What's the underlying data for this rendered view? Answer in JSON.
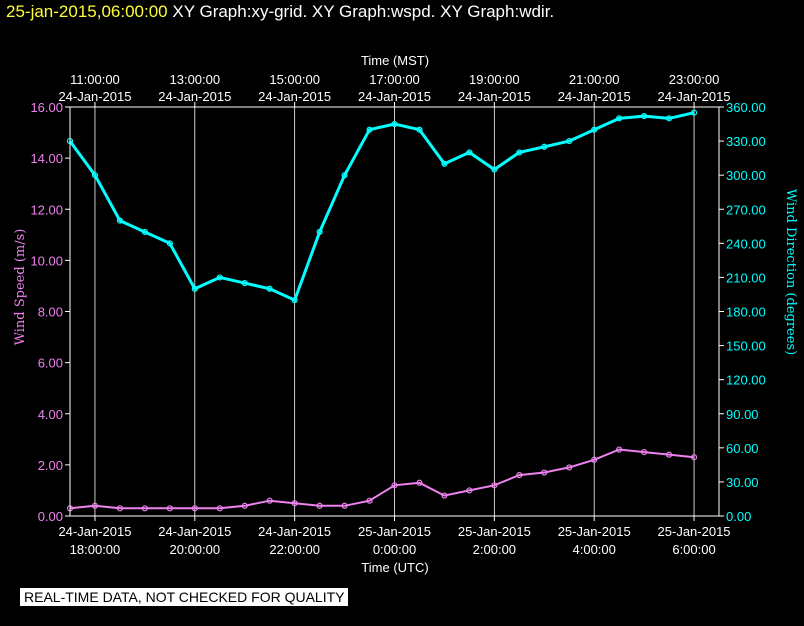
{
  "header": {
    "timestamp": "25-jan-2015,06:00:00",
    "graphs": [
      "XY Graph:xy-grid.",
      "XY Graph:wspd.",
      "XY Graph:wdir."
    ]
  },
  "disclaimer": "REAL-TIME DATA, NOT CHECKED FOR QUALITY",
  "colors": {
    "background": "#000000",
    "axes": "#ffffff",
    "gridlines": "#ffffff",
    "wind_speed": "#ee82ee",
    "wind_direction": "#00ffff",
    "header_timestamp": "#ffff33"
  },
  "chart_data": {
    "type": "scatter",
    "grid": true,
    "x_top_label": "Time (MST)",
    "x_bottom_label": "Time (UTC)",
    "y_left_label": "Wind Speed (m/s)",
    "y_right_label": "Wind Direction (degrees)",
    "x_range_utc_hours": [
      17.5,
      30.5
    ],
    "y_left_range": [
      0,
      16
    ],
    "y_right_range": [
      0,
      360
    ],
    "y_left_ticks": [
      "0.00",
      "2.00",
      "4.00",
      "6.00",
      "8.00",
      "10.00",
      "12.00",
      "14.00",
      "16.00"
    ],
    "y_right_ticks": [
      "0.00",
      "30.00",
      "60.00",
      "90.00",
      "120.00",
      "150.00",
      "180.00",
      "210.00",
      "240.00",
      "270.00",
      "300.00",
      "330.00",
      "360.00"
    ],
    "x_bottom_ticks": [
      {
        "hour_utc": 18,
        "time": "18:00:00",
        "date": "24-Jan-2015"
      },
      {
        "hour_utc": 20,
        "time": "20:00:00",
        "date": "24-Jan-2015"
      },
      {
        "hour_utc": 22,
        "time": "22:00:00",
        "date": "24-Jan-2015"
      },
      {
        "hour_utc": 24,
        "time": "0:00:00",
        "date": "25-Jan-2015"
      },
      {
        "hour_utc": 26,
        "time": "2:00:00",
        "date": "25-Jan-2015"
      },
      {
        "hour_utc": 28,
        "time": "4:00:00",
        "date": "25-Jan-2015"
      },
      {
        "hour_utc": 30,
        "time": "6:00:00",
        "date": "25-Jan-2015"
      }
    ],
    "x_top_ticks": [
      {
        "hour_utc": 18,
        "time": "11:00:00",
        "date": "24-Jan-2015"
      },
      {
        "hour_utc": 20,
        "time": "13:00:00",
        "date": "24-Jan-2015"
      },
      {
        "hour_utc": 22,
        "time": "15:00:00",
        "date": "24-Jan-2015"
      },
      {
        "hour_utc": 24,
        "time": "17:00:00",
        "date": "24-Jan-2015"
      },
      {
        "hour_utc": 26,
        "time": "19:00:00",
        "date": "24-Jan-2015"
      },
      {
        "hour_utc": 28,
        "time": "21:00:00",
        "date": "24-Jan-2015"
      },
      {
        "hour_utc": 30,
        "time": "23:00:00",
        "date": "24-Jan-2015"
      }
    ],
    "series": [
      {
        "name": "Wind Speed (m/s)",
        "axis": "left",
        "x_hours_utc": [
          17.5,
          18.0,
          18.5,
          19.0,
          19.5,
          20.0,
          20.5,
          21.0,
          21.5,
          22.0,
          22.5,
          23.0,
          23.5,
          24.0,
          24.5,
          25.0,
          25.5,
          26.0,
          26.5,
          27.0,
          27.5,
          28.0,
          28.5,
          29.0,
          29.5,
          30.0
        ],
        "y": [
          0.3,
          0.4,
          0.3,
          0.3,
          0.3,
          0.3,
          0.3,
          0.4,
          0.6,
          0.5,
          0.4,
          0.4,
          0.6,
          1.2,
          1.3,
          0.8,
          1.0,
          1.2,
          1.6,
          1.7,
          1.9,
          2.2,
          2.6,
          2.5,
          2.4,
          2.3
        ]
      },
      {
        "name": "Wind Direction (degrees)",
        "axis": "right",
        "x_hours_utc": [
          17.5,
          18.0,
          18.5,
          19.0,
          19.5,
          20.0,
          20.5,
          21.0,
          21.5,
          22.0,
          22.5,
          23.0,
          23.5,
          24.0,
          24.5,
          25.0,
          25.5,
          26.0,
          26.5,
          27.0,
          27.5,
          28.0,
          28.5,
          29.0,
          29.5,
          30.0
        ],
        "y": [
          330,
          300,
          260,
          250,
          240,
          200,
          210,
          205,
          200,
          190,
          250,
          300,
          340,
          345,
          340,
          310,
          320,
          305,
          320,
          325,
          330,
          340,
          350,
          352,
          350,
          355
        ]
      }
    ]
  }
}
